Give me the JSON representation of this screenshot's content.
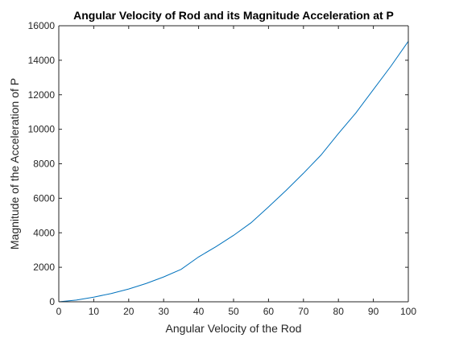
{
  "chart_data": {
    "type": "line",
    "title": "Angular Velocity of Rod and its Magnitude Acceleration at P",
    "xlabel": "Angular Velocity of the Rod",
    "ylabel": "Magnitude of the Acceleration of P",
    "xlim": [
      0,
      100
    ],
    "ylim": [
      0,
      16000
    ],
    "x_ticks": [
      0,
      10,
      20,
      30,
      40,
      50,
      60,
      70,
      80,
      90,
      100
    ],
    "y_ticks": [
      0,
      2000,
      4000,
      6000,
      8000,
      10000,
      12000,
      14000,
      16000
    ],
    "grid": false,
    "series": [
      {
        "color": "#0072bd",
        "x": [
          0,
          5,
          10,
          15,
          20,
          25,
          30,
          35,
          40,
          45,
          50,
          55,
          60,
          65,
          70,
          75,
          80,
          85,
          90,
          95,
          100
        ],
        "y": [
          0,
          100,
          270,
          480,
          740,
          1060,
          1440,
          1880,
          2600,
          3200,
          3850,
          4580,
          5500,
          6450,
          7450,
          8500,
          9750,
          10950,
          12300,
          13650,
          15100
        ]
      }
    ]
  }
}
